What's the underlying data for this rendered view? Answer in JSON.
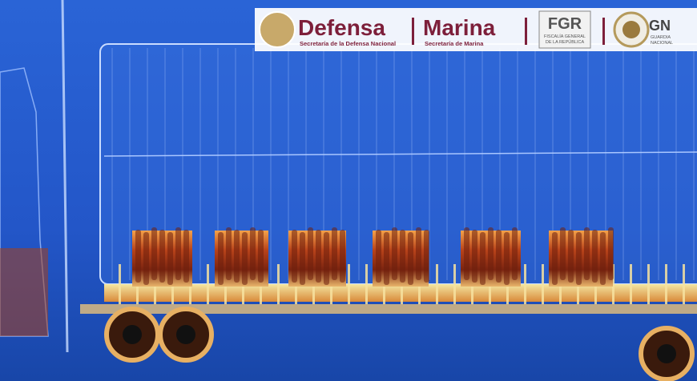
{
  "logos": {
    "defensa": {
      "title": "Defensa",
      "subtitle": "Secretaría de la Defensa Nacional"
    },
    "marina": {
      "title": "Marina",
      "subtitle": "Secretaría de Marina"
    },
    "fgr": {
      "title": "FGR",
      "subtitle": [
        "FISCALÍA GENERAL",
        "DE LA REPÚBLICA"
      ]
    },
    "gn": {
      "title": "GN",
      "subtitle": [
        "GUARDIA",
        "NACIONAL"
      ]
    }
  }
}
